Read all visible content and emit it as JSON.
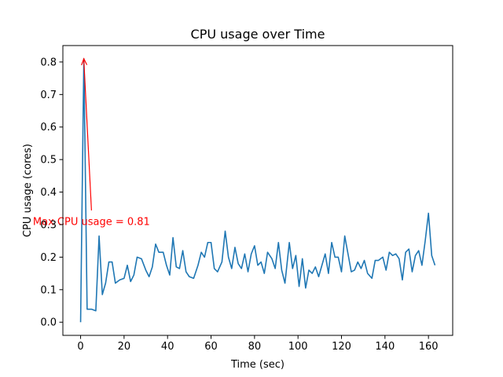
{
  "chart_data": {
    "type": "line",
    "title": "CPU usage over Time",
    "xlabel": "Time (sec)",
    "ylabel": "CPU usage (cores)",
    "xlim": [
      -8.15,
      171.15
    ],
    "ylim": [
      -0.0405,
      0.8505
    ],
    "x_ticks": [
      0,
      20,
      40,
      60,
      80,
      100,
      120,
      140,
      160
    ],
    "x_tick_labels": [
      "0",
      "20",
      "40",
      "60",
      "80",
      "100",
      "120",
      "140",
      "160"
    ],
    "y_ticks": [
      0.0,
      0.1,
      0.2,
      0.3,
      0.4,
      0.5,
      0.6,
      0.7,
      0.8
    ],
    "y_tick_labels": [
      "0.0",
      "0.1",
      "0.2",
      "0.3",
      "0.4",
      "0.5",
      "0.6",
      "0.7",
      "0.8"
    ],
    "grid": false,
    "series": [
      {
        "color": "#1f77b4",
        "x": [
          0,
          1.5,
          3,
          5,
          7,
          8.5,
          10,
          11.5,
          13,
          14.5,
          16,
          18,
          20,
          21.5,
          23,
          24.5,
          26,
          28,
          30,
          31.5,
          33,
          34.5,
          36,
          38,
          39.5,
          41,
          42.5,
          44,
          45.5,
          47,
          48.5,
          50,
          52,
          54,
          55.5,
          57,
          58.5,
          60,
          61.5,
          63,
          65,
          66.5,
          68,
          69.5,
          71,
          72.5,
          74,
          75.5,
          77,
          78.5,
          80,
          81.5,
          83,
          84.5,
          86,
          88,
          89.5,
          91,
          92.5,
          94,
          96,
          97.5,
          99,
          100.5,
          102,
          103.5,
          105,
          106.5,
          108,
          109.5,
          111,
          112.5,
          114,
          115.5,
          117,
          118.5,
          120,
          121.5,
          123,
          124.5,
          126,
          127.5,
          129,
          130.5,
          132,
          134,
          135.5,
          137,
          139,
          140.5,
          142,
          143.5,
          145,
          146.5,
          148,
          149.5,
          151,
          152.5,
          154,
          155.5,
          157,
          158.5,
          160,
          161.5,
          163
        ],
        "values": [
          0.0,
          0.81,
          0.04,
          0.04,
          0.035,
          0.265,
          0.085,
          0.12,
          0.185,
          0.185,
          0.12,
          0.13,
          0.135,
          0.175,
          0.125,
          0.145,
          0.2,
          0.195,
          0.16,
          0.14,
          0.17,
          0.24,
          0.215,
          0.215,
          0.175,
          0.145,
          0.26,
          0.17,
          0.165,
          0.22,
          0.155,
          0.14,
          0.135,
          0.175,
          0.215,
          0.2,
          0.245,
          0.245,
          0.165,
          0.155,
          0.185,
          0.28,
          0.2,
          0.165,
          0.23,
          0.18,
          0.165,
          0.21,
          0.155,
          0.21,
          0.235,
          0.175,
          0.185,
          0.15,
          0.215,
          0.195,
          0.165,
          0.245,
          0.16,
          0.12,
          0.245,
          0.165,
          0.205,
          0.11,
          0.195,
          0.105,
          0.16,
          0.15,
          0.17,
          0.14,
          0.175,
          0.21,
          0.15,
          0.245,
          0.2,
          0.2,
          0.155,
          0.265,
          0.21,
          0.155,
          0.16,
          0.185,
          0.165,
          0.19,
          0.15,
          0.135,
          0.19,
          0.19,
          0.2,
          0.16,
          0.215,
          0.205,
          0.21,
          0.195,
          0.13,
          0.215,
          0.225,
          0.155,
          0.205,
          0.22,
          0.175,
          0.25,
          0.335,
          0.205,
          0.175
        ]
      }
    ],
    "annotation": {
      "text": "Max CPU usage = 0.81",
      "xy": [
        1.5,
        0.81
      ],
      "xytext": [
        5,
        0.31
      ],
      "color": "#ff0000"
    }
  }
}
